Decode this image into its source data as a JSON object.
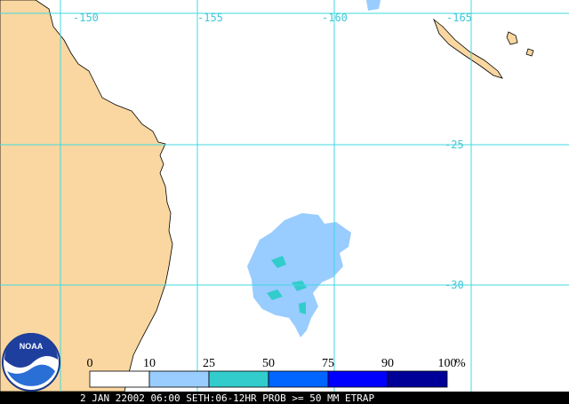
{
  "map": {
    "longitude_labels": [
      "-150",
      "-155",
      "-160",
      "-165"
    ],
    "latitude_labels": [
      "-25",
      "-30"
    ],
    "logo": "NOAA",
    "legend": {
      "ticks": [
        "0",
        "10",
        "25",
        "50",
        "75",
        "90",
        "100"
      ],
      "unit": "%",
      "colors": [
        "#ffffff",
        "#99ccff",
        "#33cccc",
        "#0066ff",
        "#0000ff",
        "#000099"
      ]
    },
    "caption": "2 JAN 22002 06:00 SETH:06-12HR PROB >= 50 MM ETRAP"
  }
}
